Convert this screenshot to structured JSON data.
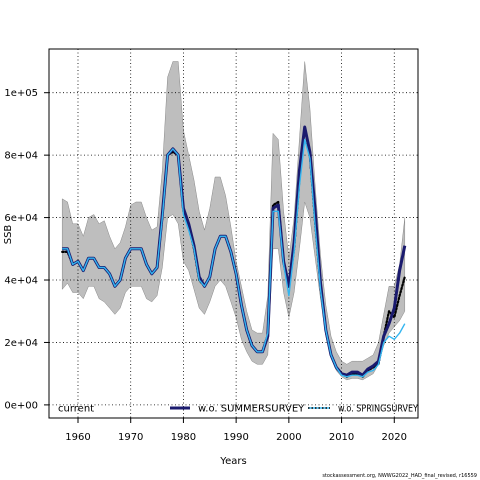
{
  "chart_data": {
    "type": "line",
    "xlabel": "Years",
    "ylabel": "SSB",
    "xlim": [
      1954.5,
      2024.5
    ],
    "ylim": [
      -4200,
      114000
    ],
    "x_ticks": [
      1960,
      1970,
      1980,
      1990,
      2000,
      2010,
      2020
    ],
    "x_tick_labels": [
      "1960",
      "1970",
      "1980",
      "1990",
      "2000",
      "2010",
      "2020"
    ],
    "y_ticks": [
      0,
      20000,
      40000,
      60000,
      80000,
      100000
    ],
    "y_tick_labels": [
      "0e+00",
      "2e+04",
      "4e+04",
      "6e+04",
      "8e+04",
      "1e+05"
    ],
    "grid": true,
    "legend_position": "bottom",
    "colors": {
      "band": "#bebebe",
      "band_edge": "#888888",
      "current": "#000000",
      "summer": "#1a1a6e",
      "spring": "#33b5f0"
    },
    "x": [
      1957,
      1958,
      1959,
      1960,
      1961,
      1962,
      1963,
      1964,
      1965,
      1966,
      1967,
      1968,
      1969,
      1970,
      1971,
      1972,
      1973,
      1974,
      1975,
      1976,
      1977,
      1978,
      1979,
      1980,
      1981,
      1982,
      1983,
      1984,
      1985,
      1986,
      1987,
      1988,
      1989,
      1990,
      1991,
      1992,
      1993,
      1994,
      1995,
      1996,
      1997,
      1998,
      1999,
      2000,
      2001,
      2002,
      2003,
      2004,
      2005,
      2006,
      2007,
      2008,
      2009,
      2010,
      2011,
      2012,
      2013,
      2014,
      2015,
      2016,
      2017,
      2018,
      2019,
      2020,
      2021,
      2022
    ],
    "band": {
      "upper": [
        66000,
        65000,
        58000,
        58000,
        54000,
        60000,
        61000,
        58000,
        59000,
        54000,
        50000,
        52000,
        57000,
        64000,
        65000,
        65000,
        60000,
        56000,
        57000,
        75000,
        105000,
        110000,
        110000,
        88000,
        80000,
        72000,
        62000,
        56000,
        63000,
        73000,
        73000,
        67000,
        57000,
        46000,
        38000,
        30000,
        24000,
        23000,
        23000,
        35000,
        87000,
        85000,
        62000,
        47000,
        60000,
        85000,
        110000,
        95000,
        70000,
        48000,
        32000,
        22000,
        17000,
        14000,
        13000,
        14000,
        14000,
        14000,
        15000,
        16000,
        20000,
        29000,
        38000,
        38000,
        45000,
        60000
      ],
      "lower": [
        37000,
        39000,
        36000,
        36000,
        34000,
        38000,
        38000,
        34000,
        33000,
        31000,
        29000,
        31000,
        36000,
        38000,
        38000,
        38000,
        34000,
        33000,
        35000,
        44000,
        60000,
        61000,
        58000,
        46000,
        43000,
        37000,
        31000,
        29000,
        33000,
        38000,
        40000,
        38000,
        33000,
        28000,
        21000,
        17000,
        14000,
        13000,
        13000,
        16000,
        50000,
        50000,
        36000,
        28000,
        36000,
        50000,
        65000,
        60000,
        47000,
        34000,
        22000,
        15000,
        11000,
        9000,
        8000,
        8500,
        8500,
        8000,
        9000,
        10000,
        13000,
        19000,
        23000,
        25000,
        27000,
        30000
      ]
    },
    "series": [
      {
        "name": "current",
        "style": "dotted",
        "width": 2.2,
        "values": [
          49000,
          49000,
          45000,
          46000,
          43000,
          47000,
          47000,
          44000,
          44000,
          42000,
          38000,
          40000,
          47000,
          50000,
          50000,
          50000,
          45000,
          42000,
          44000,
          60000,
          80000,
          81000,
          80000,
          62000,
          57000,
          50000,
          40000,
          38000,
          41000,
          50000,
          54000,
          54000,
          49000,
          42000,
          32000,
          24000,
          19000,
          17000,
          17000,
          22000,
          64000,
          65000,
          46000,
          38000,
          50000,
          72000,
          89000,
          80000,
          58000,
          38000,
          24000,
          16000,
          12000,
          10000,
          9000,
          10000,
          10000,
          9000,
          11000,
          12000,
          13000,
          22000,
          30000,
          28000,
          35000,
          41000
        ]
      },
      {
        "name": "w.o. SUMMERSURVEY",
        "style": "solid",
        "width": 3,
        "values": [
          50000,
          50000,
          45000,
          46000,
          43000,
          47000,
          47000,
          44000,
          44000,
          42000,
          38000,
          40000,
          47000,
          50000,
          50000,
          50000,
          45000,
          42000,
          44000,
          61000,
          80000,
          82000,
          80000,
          63000,
          58000,
          51000,
          41000,
          38000,
          41000,
          50000,
          54000,
          54000,
          49000,
          42000,
          32000,
          24000,
          19000,
          17000,
          17000,
          22000,
          63000,
          64000,
          46000,
          38000,
          52000,
          75000,
          89000,
          81000,
          62000,
          39000,
          24000,
          16000,
          12000,
          10000,
          9500,
          10500,
          10500,
          9500,
          11500,
          12500,
          14000,
          22000,
          26000,
          31000,
          43000,
          51000
        ]
      },
      {
        "name": "w.o. SPRINGSURVEY",
        "style": "solid",
        "width": 1.4,
        "values": [
          50000,
          50000,
          45000,
          46000,
          43000,
          47000,
          47000,
          44000,
          44000,
          42000,
          38000,
          40000,
          47000,
          50000,
          50000,
          50000,
          45000,
          42000,
          44000,
          60000,
          80000,
          82000,
          80000,
          61000,
          56000,
          50000,
          40000,
          38000,
          41000,
          50000,
          54000,
          54000,
          49000,
          42000,
          32000,
          24000,
          19000,
          17000,
          17000,
          23000,
          62000,
          62000,
          45000,
          35000,
          49000,
          70000,
          85000,
          79000,
          57000,
          37000,
          24000,
          16000,
          12000,
          9500,
          9000,
          9500,
          9500,
          9000,
          10500,
          11000,
          13000,
          20000,
          22000,
          21000,
          23000,
          26000
        ]
      }
    ],
    "legend": [
      "current",
      "w.o. SUMMERSURVEY",
      "w.o. SPRINGSURVEY"
    ]
  },
  "footer_text": "stockassessment.org, NWWG2022_HAD_final_revised, r16559"
}
